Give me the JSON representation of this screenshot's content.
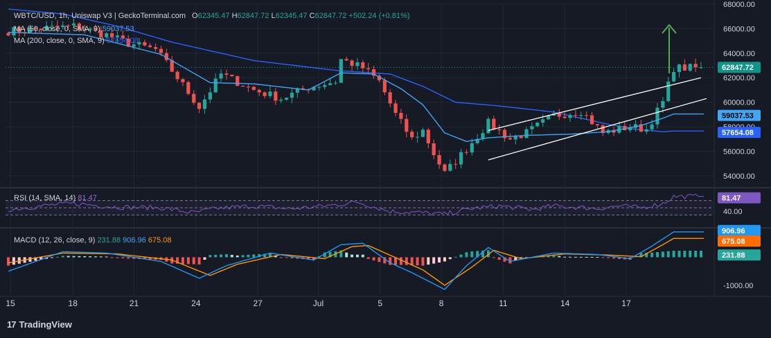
{
  "header": {
    "symbol": "WBTC/USD, 1h, Uniswap V3 | GeckoTerminal.com",
    "open_label": "O",
    "open": "62345.47",
    "high_label": "H",
    "high": "62847.72",
    "low_label": "L",
    "low": "62345.47",
    "close_label": "C",
    "close": "62847.72",
    "change": "+502.24 (+0.81%)"
  },
  "ma50": {
    "label": "MA (50, close, 0, SMA, 9)",
    "value": "59037.53"
  },
  "ma200": {
    "label": "MA (200, close, 0, SMA, 9)",
    "value": "57654.08"
  },
  "rsi": {
    "label": "RSI (14, SMA, 14)",
    "value": "81.47"
  },
  "macd": {
    "label": "MACD (12, 26, close, 9)",
    "hist": "231.88",
    "macd": "906.96",
    "signal": "675.08"
  },
  "watermark": "TradingView",
  "colors": {
    "background": "#161a25",
    "grid": "#232734",
    "up": "#26a69a",
    "down": "#ef5350",
    "ma50": "#42a5f5",
    "ma200": "#2962ff",
    "rsi": "#7e57c2",
    "macd": "#2196f3",
    "signal": "#ff9800",
    "arrow": "#4caf50",
    "channel": "#ffffff"
  },
  "chart_data": {
    "type": "candlestick",
    "title": "WBTC/USD, 1h, Uniswap V3",
    "x_ticks": [
      "15",
      "18",
      "21",
      "24",
      "27",
      "Jul",
      "5",
      "8",
      "11",
      "14",
      "17"
    ],
    "price_axis": {
      "range": [
        53200,
        68000
      ],
      "ticks": [
        "54000.00",
        "56000.00",
        "58000.00",
        "60000.00",
        "62000.00",
        "64000.00",
        "66000.00",
        "68000.00"
      ],
      "last_price": "62847.72",
      "ma50_tag": "59037.53",
      "ma200_tag": "57654.08"
    },
    "price_path": [
      [
        0,
        65800
      ],
      [
        12,
        66200
      ],
      [
        18,
        65500
      ],
      [
        22,
        64800
      ],
      [
        27,
        64300
      ],
      [
        31,
        62000
      ],
      [
        35,
        59600
      ],
      [
        39,
        62300
      ],
      [
        45,
        61000
      ],
      [
        50,
        60300
      ],
      [
        55,
        61200
      ],
      [
        60,
        61700
      ],
      [
        61,
        63500
      ],
      [
        65,
        62800
      ],
      [
        68,
        61700
      ],
      [
        71,
        59000
      ],
      [
        74,
        57000
      ],
      [
        76,
        57700
      ],
      [
        78,
        55800
      ],
      [
        80,
        54200
      ],
      [
        84,
        56200
      ],
      [
        88,
        58300
      ],
      [
        92,
        57000
      ],
      [
        95,
        57500
      ],
      [
        100,
        58900
      ],
      [
        105,
        59300
      ],
      [
        109,
        57500
      ],
      [
        114,
        58000
      ],
      [
        117,
        57800
      ],
      [
        120,
        60000
      ],
      [
        122,
        62800
      ]
    ],
    "ma50_path": [
      [
        0,
        65700
      ],
      [
        14,
        65500
      ],
      [
        28,
        63900
      ],
      [
        37,
        61600
      ],
      [
        45,
        61500
      ],
      [
        55,
        61000
      ],
      [
        61,
        62400
      ],
      [
        67,
        62300
      ],
      [
        72,
        61100
      ],
      [
        76,
        59800
      ],
      [
        80,
        57500
      ],
      [
        84,
        56800
      ],
      [
        88,
        57100
      ],
      [
        95,
        57300
      ],
      [
        103,
        57400
      ],
      [
        110,
        57600
      ],
      [
        116,
        58100
      ],
      [
        120,
        58700
      ],
      [
        122,
        59040
      ]
    ],
    "ma200_path": [
      [
        0,
        67600
      ],
      [
        10,
        67200
      ],
      [
        20,
        66200
      ],
      [
        30,
        64900
      ],
      [
        45,
        63400
      ],
      [
        60,
        62600
      ],
      [
        70,
        62300
      ],
      [
        76,
        61300
      ],
      [
        82,
        60000
      ],
      [
        90,
        59700
      ],
      [
        100,
        59200
      ],
      [
        110,
        58200
      ],
      [
        115,
        57800
      ],
      [
        120,
        57600
      ],
      [
        122,
        57654
      ]
    ],
    "channel_upper": [
      [
        88,
        57700
      ],
      [
        127,
        62000
      ]
    ],
    "channel_lower": [
      [
        88,
        55300
      ],
      [
        128,
        60300
      ]
    ],
    "rsi_axis": {
      "ticks": [
        "40.00"
      ],
      "band_upper": 70,
      "band_lower": 30,
      "mid": 50
    },
    "rsi_path": [
      [
        0,
        45
      ],
      [
        8,
        58
      ],
      [
        12,
        62
      ],
      [
        20,
        52
      ],
      [
        28,
        50
      ],
      [
        34,
        36
      ],
      [
        38,
        48
      ],
      [
        45,
        55
      ],
      [
        52,
        47
      ],
      [
        60,
        58
      ],
      [
        64,
        66
      ],
      [
        70,
        40
      ],
      [
        74,
        38
      ],
      [
        78,
        34
      ],
      [
        80,
        32
      ],
      [
        85,
        48
      ],
      [
        90,
        55
      ],
      [
        96,
        45
      ],
      [
        100,
        55
      ],
      [
        108,
        48
      ],
      [
        112,
        55
      ],
      [
        116,
        50
      ],
      [
        120,
        62
      ],
      [
        122,
        81.47
      ]
    ],
    "macd_axis": {
      "ticks": [
        "0.00",
        "-1000.00"
      ],
      "range": [
        -1350,
        1050
      ]
    },
    "macd_path": [
      [
        0,
        -500
      ],
      [
        10,
        200
      ],
      [
        18,
        150
      ],
      [
        28,
        -150
      ],
      [
        35,
        -750
      ],
      [
        40,
        -300
      ],
      [
        48,
        150
      ],
      [
        56,
        -100
      ],
      [
        61,
        450
      ],
      [
        65,
        500
      ],
      [
        70,
        -200
      ],
      [
        74,
        -550
      ],
      [
        78,
        -950
      ],
      [
        80,
        -1150
      ],
      [
        84,
        -300
      ],
      [
        88,
        350
      ],
      [
        92,
        -150
      ],
      [
        100,
        150
      ],
      [
        108,
        100
      ],
      [
        114,
        -50
      ],
      [
        118,
        400
      ],
      [
        122,
        907
      ]
    ],
    "signal_path": [
      [
        0,
        -200
      ],
      [
        10,
        150
      ],
      [
        20,
        120
      ],
      [
        30,
        -100
      ],
      [
        37,
        -650
      ],
      [
        42,
        -250
      ],
      [
        50,
        100
      ],
      [
        58,
        -50
      ],
      [
        63,
        380
      ],
      [
        66,
        420
      ],
      [
        72,
        -100
      ],
      [
        76,
        -450
      ],
      [
        80,
        -1000
      ],
      [
        85,
        -350
      ],
      [
        89,
        250
      ],
      [
        94,
        -50
      ],
      [
        102,
        120
      ],
      [
        110,
        80
      ],
      [
        116,
        20
      ],
      [
        120,
        450
      ],
      [
        122,
        675
      ]
    ]
  }
}
